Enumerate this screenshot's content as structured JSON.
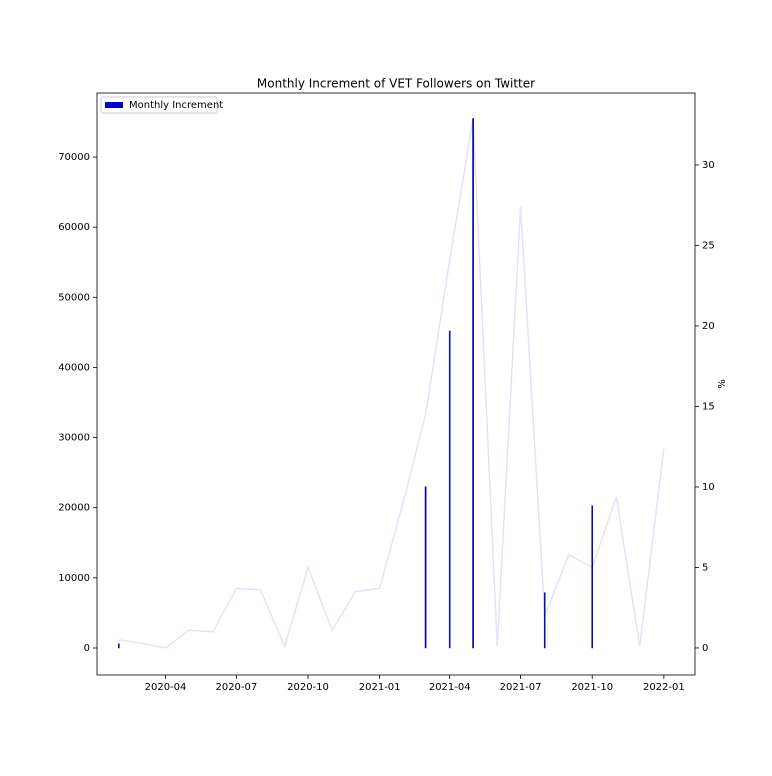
{
  "chart_data": {
    "type": "bar-line",
    "title": "Monthly Increment of VET Followers on Twitter",
    "y2label": "%",
    "x": [
      "2020-02",
      "2020-03",
      "2020-04",
      "2020-05",
      "2020-06",
      "2020-07",
      "2020-08",
      "2020-09",
      "2020-10",
      "2020-11",
      "2020-12",
      "2021-01",
      "2021-02",
      "2021-03",
      "2021-04",
      "2021-05",
      "2021-06",
      "2021-07",
      "2021-08",
      "2021-09",
      "2021-10",
      "2021-11",
      "2021-12",
      "2022-01"
    ],
    "series": [
      {
        "name": "Monthly Increment",
        "type": "bar",
        "color": "#0000cd",
        "values": [
          600,
          0,
          0,
          0,
          0,
          0,
          0,
          0,
          0,
          0,
          0,
          0,
          0,
          23000,
          45200,
          75500,
          0,
          0,
          7900,
          0,
          20300,
          0,
          0,
          0
        ]
      },
      {
        "type": "line",
        "axis": "y2",
        "color": "#e3e3f6",
        "values": [
          0.5,
          0.3,
          0.0,
          1.1,
          1.0,
          3.7,
          3.6,
          0.1,
          5.0,
          1.1,
          3.5,
          3.7,
          9.2,
          14.5,
          24.1,
          32.9,
          0.1,
          27.4,
          2.0,
          5.8,
          5.0,
          9.4,
          0.1,
          12.4
        ]
      }
    ],
    "xlim": [
      "2020-01-04",
      "2022-02-10"
    ],
    "xticks": [
      "2020-04",
      "2020-07",
      "2020-10",
      "2021-01",
      "2021-04",
      "2021-07",
      "2021-10",
      "2022-01"
    ],
    "ylim": [
      -3850,
      79130
    ],
    "yticks": [
      0,
      10000,
      20000,
      30000,
      40000,
      50000,
      60000,
      70000
    ],
    "y2lim": [
      -1.68,
      34.47
    ],
    "y2ticks": [
      0,
      5,
      10,
      15,
      20,
      25,
      30
    ],
    "legend": "upper left"
  }
}
